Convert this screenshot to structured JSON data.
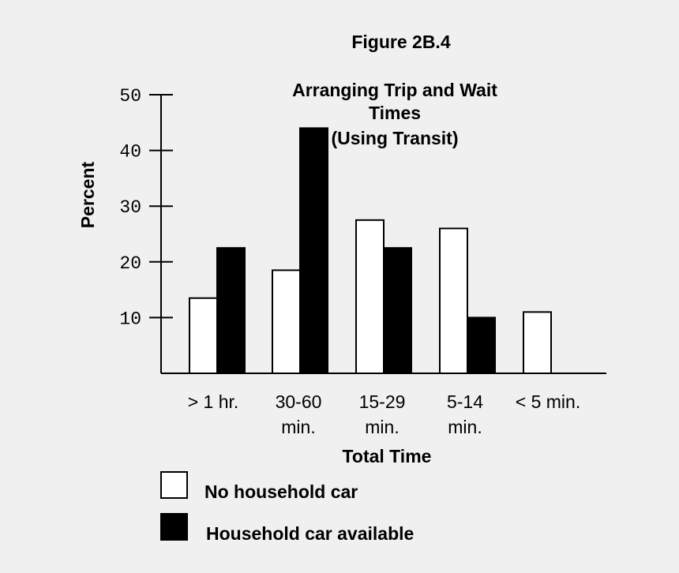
{
  "chart_data": {
    "type": "bar",
    "figure_label": "Figure 2B.4",
    "title_lines": [
      "Arranging Trip and Wait",
      "Times",
      "(Using Transit)"
    ],
    "ylabel": "Percent",
    "xlabel": "Total Time",
    "ylim": [
      0,
      50
    ],
    "yticks": [
      "10",
      "20",
      "30",
      "40",
      "50"
    ],
    "ytick_values": [
      10,
      20,
      30,
      40,
      50
    ],
    "categories": [
      [
        "> 1 hr."
      ],
      [
        "30-60",
        "min."
      ],
      [
        "15-29",
        "min."
      ],
      [
        "5-14",
        "min."
      ],
      [
        "< 5 min."
      ]
    ],
    "series": [
      {
        "name": "No household car",
        "color": "#ffffff",
        "values": [
          13.5,
          18.5,
          27.5,
          26,
          11
        ]
      },
      {
        "name": "Household car available",
        "color": "#000000",
        "values": [
          22.5,
          44,
          22.5,
          10,
          0
        ]
      }
    ],
    "legend_position": "bottom-left",
    "colors": {
      "background": "#f0f0f0",
      "ink": "#000000"
    }
  }
}
